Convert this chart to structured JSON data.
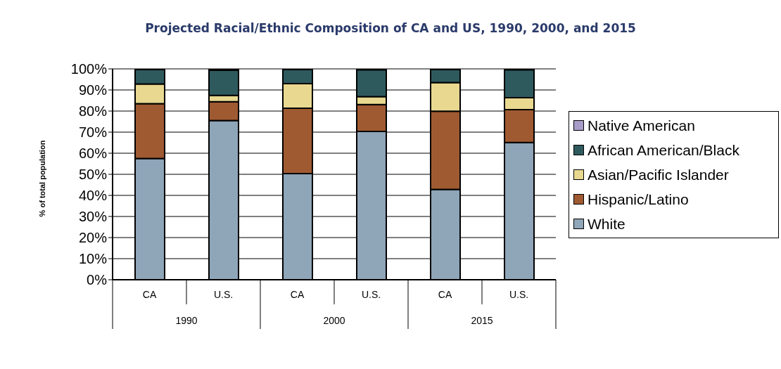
{
  "chart_data": {
    "type": "bar",
    "stacked": true,
    "title": "Projected Racial/Ethnic Composition of CA and US, 1990, 2000, and 2015",
    "ylabel": "% of total population",
    "categories": [
      "CA",
      "U.S.",
      "CA",
      "U.S.",
      "CA",
      "U.S."
    ],
    "annotations": [
      "1990",
      "2000",
      "2015"
    ],
    "series": [
      {
        "name": "White",
        "color": "#8fa5b8",
        "values": [
          57.5,
          75.5,
          50.3,
          70.3,
          42.8,
          65.1
        ]
      },
      {
        "name": "Hispanic/Latino",
        "color": "#a05a32",
        "values": [
          26,
          8.9,
          31,
          12.8,
          37.1,
          15.6
        ]
      },
      {
        "name": "Asian/Pacific Islander",
        "color": "#e8d890",
        "values": [
          9.3,
          3,
          11.7,
          3.7,
          13.6,
          5.6
        ]
      },
      {
        "name": "African American/Black",
        "color": "#2e5a5e",
        "values": [
          6.9,
          11.9,
          6.7,
          12.8,
          6.2,
          13.3
        ]
      },
      {
        "name": "Native American",
        "color": "#a79cc8",
        "values": [
          0.3,
          0.7,
          0.3,
          0.4,
          0.3,
          0.4
        ]
      }
    ],
    "ylim": [
      0,
      100
    ],
    "yticks": [
      {
        "value": 0,
        "label": "0%"
      },
      {
        "value": 10,
        "label": "10%"
      },
      {
        "value": 20,
        "label": "20%"
      },
      {
        "value": 30,
        "label": "30%"
      },
      {
        "value": 40,
        "label": "40%"
      },
      {
        "value": 50,
        "label": "50%"
      },
      {
        "value": 60,
        "label": "60%"
      },
      {
        "value": 70,
        "label": "70%"
      },
      {
        "value": 80,
        "label": "80%"
      },
      {
        "value": 90,
        "label": "90%"
      },
      {
        "value": 100,
        "label": "100%"
      }
    ],
    "grid": "y",
    "legend": "right"
  }
}
